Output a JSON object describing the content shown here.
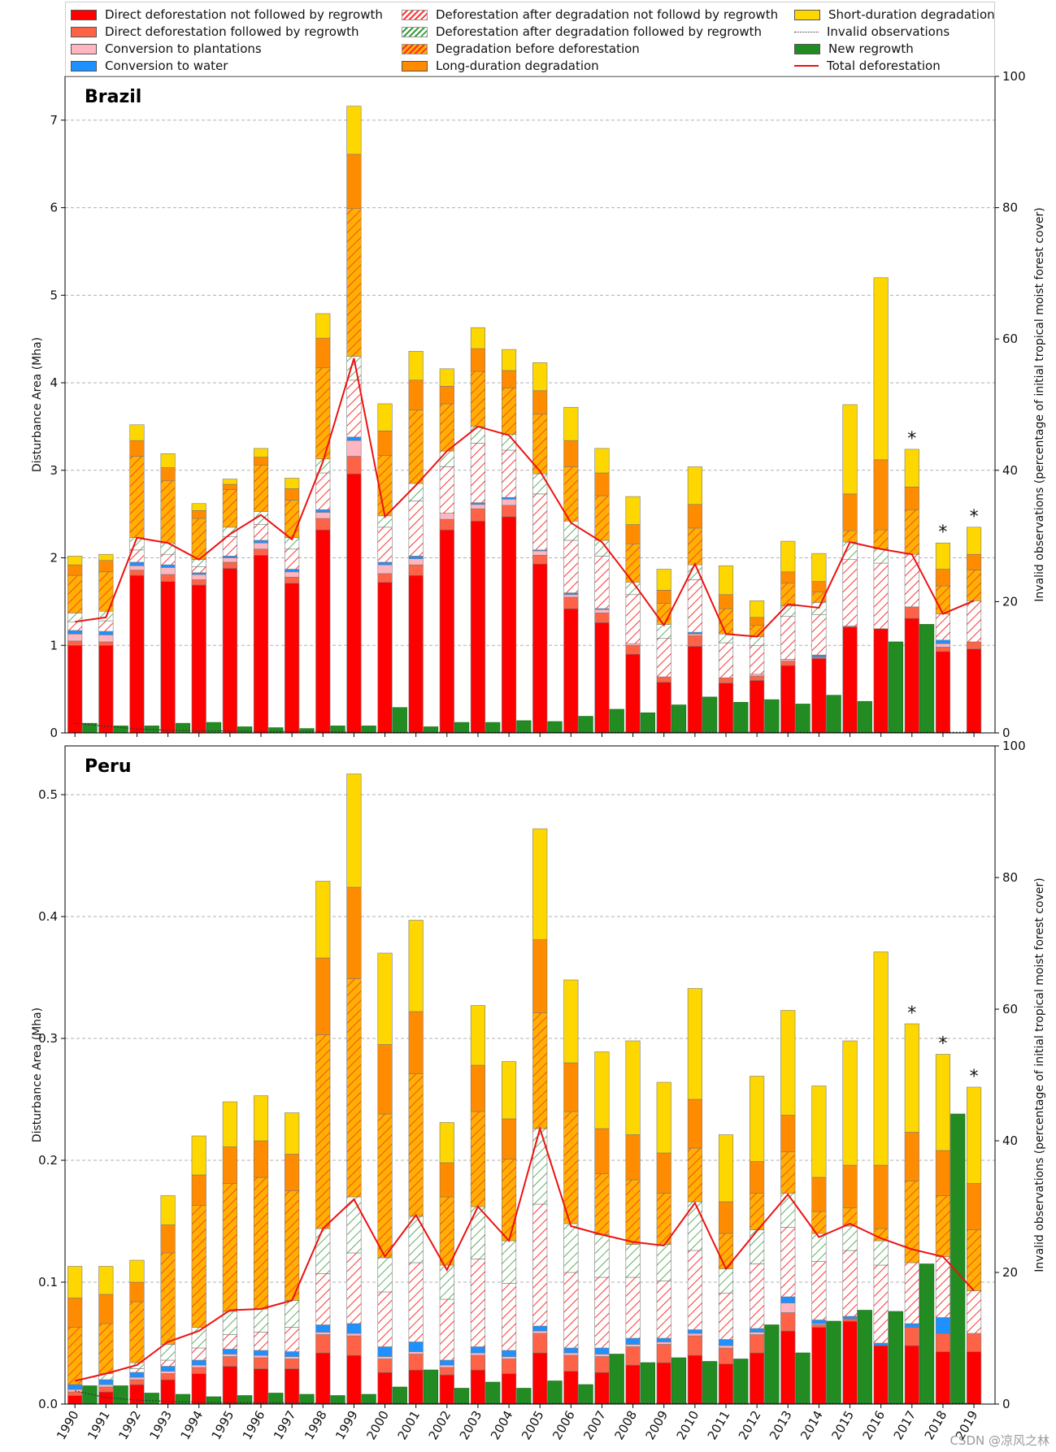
{
  "legend": [
    {
      "key": "direct_nr",
      "label": "Direct deforestation not followed by regrowth",
      "color": "#ff0000",
      "style": "solid"
    },
    {
      "key": "direct_r",
      "label": "Direct deforestation followed by regrowth",
      "color": "#ff6347",
      "style": "solid"
    },
    {
      "key": "plant",
      "label": "Conversion to plantations",
      "color": "#ffb6c1",
      "style": "solid"
    },
    {
      "key": "water",
      "label": "Conversion to water",
      "color": "#1e90ff",
      "style": "solid"
    },
    {
      "key": "dad_nr",
      "label": "Deforestation after degradation not followd by regrowth",
      "color": "#ff3333",
      "style": "hatch-red"
    },
    {
      "key": "dad_r",
      "label": "Deforestation after degradation followed by regrowth",
      "color": "#2e8b57",
      "style": "hatch-green"
    },
    {
      "key": "deg_bef",
      "label": "Degradation before deforestation",
      "color": "#ffa500",
      "style": "hatch-orange"
    },
    {
      "key": "long_deg",
      "label": "Long-duration degradation",
      "color": "#ff8c00",
      "style": "solid"
    },
    {
      "key": "short_deg",
      "label": "Short-duration degradation",
      "color": "#ffd700",
      "style": "solid"
    },
    {
      "key": "invalid",
      "label": "Invalid observations",
      "color": "#333333",
      "style": "dotted"
    },
    {
      "key": "regrowth",
      "label": "New regrowth",
      "color": "#228b22",
      "style": "solid"
    },
    {
      "key": "total",
      "label": "Total deforestation",
      "color": "#ee1111",
      "style": "line"
    }
  ],
  "chart_data": [
    {
      "type": "bar",
      "stacked": true,
      "title": "Brazil",
      "ylabel": "Disturbance Area (Mha)",
      "ylabel_right": "Invalid observations (percentage of initial tropical moist forest cover)",
      "ylim": [
        0,
        7.5
      ],
      "yticks": [
        "0",
        "1",
        "2",
        "3",
        "4",
        "5",
        "6",
        "7"
      ],
      "ylim_right": [
        0,
        100
      ],
      "yticks_right": [
        "0",
        "20",
        "40",
        "60",
        "80",
        "100"
      ],
      "categories": [
        "1990",
        "1991",
        "1992",
        "1993",
        "1994",
        "1995",
        "1996",
        "1997",
        "1998",
        "1999",
        "2000",
        "2001",
        "2002",
        "2003",
        "2004",
        "2005",
        "2006",
        "2007",
        "2008",
        "2009",
        "2010",
        "2011",
        "2012",
        "2013",
        "2014",
        "2015",
        "2016",
        "2017",
        "2018",
        "2019"
      ],
      "stack_order": [
        "direct_nr",
        "direct_r",
        "plant",
        "water",
        "dad_nr",
        "dad_r",
        "deg_bef",
        "long_deg",
        "short_deg"
      ],
      "series": {
        "direct_nr": [
          1.0,
          1.0,
          1.8,
          1.73,
          1.69,
          1.88,
          2.03,
          1.71,
          2.32,
          2.96,
          1.72,
          1.8,
          2.32,
          2.42,
          2.47,
          1.93,
          1.42,
          1.26,
          0.9,
          0.58,
          0.99,
          0.57,
          0.6,
          0.77,
          0.85,
          1.21,
          1.19,
          1.31,
          0.93,
          0.96
        ],
        "direct_r": [
          0.05,
          0.04,
          0.06,
          0.08,
          0.06,
          0.07,
          0.07,
          0.07,
          0.13,
          0.2,
          0.1,
          0.12,
          0.12,
          0.14,
          0.13,
          0.1,
          0.13,
          0.11,
          0.1,
          0.06,
          0.12,
          0.06,
          0.05,
          0.05,
          0.02,
          0.01,
          0.0,
          0.13,
          0.05,
          0.08
        ],
        "plant": [
          0.08,
          0.08,
          0.05,
          0.08,
          0.06,
          0.05,
          0.07,
          0.06,
          0.07,
          0.18,
          0.1,
          0.07,
          0.07,
          0.05,
          0.07,
          0.05,
          0.03,
          0.04,
          0.02,
          0.0,
          0.02,
          0.0,
          0.02,
          0.02,
          0.0,
          0.0,
          0.0,
          0.0,
          0.04,
          0.0
        ],
        "water": [
          0.04,
          0.04,
          0.04,
          0.03,
          0.02,
          0.02,
          0.03,
          0.03,
          0.03,
          0.04,
          0.03,
          0.03,
          0.0,
          0.02,
          0.02,
          0.01,
          0.02,
          0.01,
          0.0,
          0.0,
          0.02,
          0.0,
          0.0,
          0.0,
          0.02,
          0.0,
          0.0,
          0.0,
          0.04,
          0.0
        ],
        "dad_nr": [
          0.1,
          0.12,
          0.14,
          0.12,
          0.07,
          0.22,
          0.18,
          0.23,
          0.42,
          0.65,
          0.4,
          0.63,
          0.53,
          0.68,
          0.54,
          0.64,
          0.6,
          0.6,
          0.56,
          0.44,
          0.6,
          0.4,
          0.33,
          0.49,
          0.46,
          0.76,
          0.75,
          0.6,
          0.3,
          0.47
        ],
        "dad_r": [
          0.1,
          0.11,
          0.14,
          0.13,
          0.08,
          0.11,
          0.15,
          0.13,
          0.16,
          0.27,
          0.13,
          0.2,
          0.18,
          0.19,
          0.18,
          0.23,
          0.22,
          0.18,
          0.14,
          0.16,
          0.17,
          0.1,
          0.1,
          0.12,
          0.14,
          0.2,
          0.16,
          0.0,
          0.0,
          0.0
        ],
        "deg_bef": [
          0.43,
          0.45,
          0.93,
          0.71,
          0.47,
          0.43,
          0.53,
          0.43,
          1.04,
          1.69,
          0.69,
          0.84,
          0.54,
          0.63,
          0.53,
          0.68,
          0.62,
          0.51,
          0.44,
          0.24,
          0.42,
          0.29,
          0.13,
          0.26,
          0.12,
          0.13,
          0.22,
          0.51,
          0.32,
          0.35
        ],
        "long_deg": [
          0.12,
          0.13,
          0.18,
          0.15,
          0.09,
          0.06,
          0.09,
          0.13,
          0.34,
          0.62,
          0.28,
          0.34,
          0.2,
          0.26,
          0.2,
          0.27,
          0.3,
          0.26,
          0.22,
          0.15,
          0.27,
          0.16,
          0.09,
          0.13,
          0.12,
          0.42,
          0.8,
          0.26,
          0.19,
          0.18
        ],
        "short_deg": [
          0.1,
          0.07,
          0.18,
          0.16,
          0.08,
          0.06,
          0.1,
          0.12,
          0.28,
          0.55,
          0.31,
          0.33,
          0.2,
          0.24,
          0.24,
          0.32,
          0.38,
          0.28,
          0.32,
          0.24,
          0.43,
          0.33,
          0.19,
          0.35,
          0.32,
          1.02,
          2.08,
          0.43,
          0.3,
          0.31
        ]
      },
      "new_regrowth": [
        0.11,
        0.08,
        0.08,
        0.11,
        0.12,
        0.07,
        0.06,
        0.05,
        0.08,
        0.08,
        0.29,
        0.07,
        0.12,
        0.12,
        0.14,
        0.13,
        0.19,
        0.27,
        0.23,
        0.32,
        0.41,
        0.35,
        0.38,
        0.33,
        0.43,
        0.36,
        1.04,
        1.24,
        0.0,
        0.0
      ],
      "total_deforestation": [
        1.27,
        1.32,
        2.23,
        2.17,
        1.98,
        2.27,
        2.49,
        2.21,
        3.1,
        4.28,
        2.47,
        2.83,
        3.22,
        3.5,
        3.4,
        2.99,
        2.4,
        2.18,
        1.72,
        1.23,
        1.93,
        1.13,
        1.1,
        1.47,
        1.43,
        2.18,
        2.1,
        2.04,
        1.36,
        1.51
      ],
      "invalid_observations": [
        1.5,
        1.0,
        0.6,
        0.4,
        0.3,
        0.3,
        0.2,
        0.2,
        0.2,
        0.1,
        0.1,
        0.1,
        0.1,
        0.1,
        0.1,
        0.1,
        0.1,
        0.1,
        0.1,
        0.1,
        0.1,
        0.1,
        0.1,
        0.1,
        0.1,
        0.1,
        0.1,
        0.1,
        0.1,
        0.1
      ],
      "annotations": [
        {
          "year": "2017",
          "text": "*"
        },
        {
          "year": "2018",
          "text": "*"
        },
        {
          "year": "2019",
          "text": "*"
        }
      ]
    },
    {
      "type": "bar",
      "stacked": true,
      "title": "Peru",
      "ylabel": "Disturbance Area (Mha)",
      "ylabel_right": "Invalid observations (percentage of initial tropical moist forest cover)",
      "ylim": [
        0,
        0.54
      ],
      "yticks": [
        "0.0",
        "0.1",
        "0.2",
        "0.3",
        "0.4",
        "0.5"
      ],
      "ylim_right": [
        0,
        100
      ],
      "yticks_right": [
        "0",
        "20",
        "40",
        "60",
        "80",
        "100"
      ],
      "categories": [
        "1990",
        "1991",
        "1992",
        "1993",
        "1994",
        "1995",
        "1996",
        "1997",
        "1998",
        "1999",
        "2000",
        "2001",
        "2002",
        "2003",
        "2004",
        "2005",
        "2006",
        "2007",
        "2008",
        "2009",
        "2010",
        "2011",
        "2012",
        "2013",
        "2014",
        "2015",
        "2016",
        "2017",
        "2018",
        "2019"
      ],
      "stack_order": [
        "direct_nr",
        "direct_r",
        "plant",
        "water",
        "dad_nr",
        "dad_r",
        "deg_bef",
        "long_deg",
        "short_deg"
      ],
      "series": {
        "direct_nr": [
          0.007,
          0.01,
          0.016,
          0.02,
          0.025,
          0.031,
          0.029,
          0.029,
          0.042,
          0.04,
          0.026,
          0.028,
          0.024,
          0.028,
          0.025,
          0.042,
          0.027,
          0.026,
          0.032,
          0.034,
          0.04,
          0.033,
          0.042,
          0.06,
          0.063,
          0.068,
          0.048,
          0.048,
          0.043,
          0.043
        ],
        "direct_r": [
          0.003,
          0.004,
          0.004,
          0.005,
          0.005,
          0.008,
          0.009,
          0.008,
          0.015,
          0.016,
          0.011,
          0.013,
          0.006,
          0.012,
          0.012,
          0.016,
          0.013,
          0.013,
          0.015,
          0.015,
          0.016,
          0.013,
          0.015,
          0.015,
          0.002,
          0.002,
          0.0,
          0.015,
          0.015,
          0.015
        ],
        "plant": [
          0.002,
          0.002,
          0.002,
          0.002,
          0.002,
          0.002,
          0.002,
          0.002,
          0.002,
          0.002,
          0.002,
          0.002,
          0.002,
          0.002,
          0.002,
          0.002,
          0.002,
          0.002,
          0.002,
          0.002,
          0.002,
          0.002,
          0.002,
          0.008,
          0.001,
          0.0,
          0.0,
          0.0,
          0.0,
          0.0
        ],
        "water": [
          0.004,
          0.004,
          0.004,
          0.004,
          0.004,
          0.004,
          0.004,
          0.004,
          0.006,
          0.008,
          0.008,
          0.008,
          0.004,
          0.005,
          0.005,
          0.004,
          0.004,
          0.005,
          0.005,
          0.003,
          0.003,
          0.005,
          0.003,
          0.005,
          0.003,
          0.002,
          0.002,
          0.003,
          0.013,
          0.0
        ],
        "dad_nr": [
          0.0,
          0.0,
          0.003,
          0.005,
          0.01,
          0.012,
          0.015,
          0.02,
          0.042,
          0.058,
          0.045,
          0.065,
          0.05,
          0.072,
          0.055,
          0.1,
          0.062,
          0.058,
          0.05,
          0.047,
          0.065,
          0.038,
          0.053,
          0.057,
          0.048,
          0.054,
          0.064,
          0.05,
          0.05,
          0.035
        ],
        "dad_r": [
          0.0,
          0.005,
          0.005,
          0.013,
          0.017,
          0.019,
          0.019,
          0.022,
          0.037,
          0.046,
          0.028,
          0.038,
          0.028,
          0.043,
          0.035,
          0.062,
          0.04,
          0.035,
          0.027,
          0.03,
          0.04,
          0.02,
          0.028,
          0.028,
          0.023,
          0.02,
          0.02,
          0.0,
          0.0,
          0.0
        ],
        "deg_bef": [
          0.047,
          0.041,
          0.05,
          0.075,
          0.1,
          0.105,
          0.108,
          0.09,
          0.159,
          0.179,
          0.118,
          0.117,
          0.056,
          0.078,
          0.067,
          0.095,
          0.092,
          0.05,
          0.053,
          0.042,
          0.044,
          0.029,
          0.03,
          0.034,
          0.018,
          0.015,
          0.01,
          0.067,
          0.05,
          0.05
        ],
        "long_deg": [
          0.024,
          0.024,
          0.016,
          0.023,
          0.025,
          0.03,
          0.03,
          0.03,
          0.063,
          0.075,
          0.057,
          0.051,
          0.028,
          0.038,
          0.033,
          0.06,
          0.04,
          0.037,
          0.037,
          0.033,
          0.04,
          0.026,
          0.026,
          0.03,
          0.028,
          0.035,
          0.052,
          0.04,
          0.037,
          0.038
        ],
        "short_deg": [
          0.026,
          0.023,
          0.018,
          0.024,
          0.032,
          0.037,
          0.037,
          0.034,
          0.063,
          0.093,
          0.075,
          0.075,
          0.033,
          0.049,
          0.047,
          0.091,
          0.068,
          0.063,
          0.077,
          0.058,
          0.091,
          0.055,
          0.07,
          0.086,
          0.075,
          0.102,
          0.175,
          0.089,
          0.079,
          0.079
        ]
      },
      "new_regrowth": [
        0.015,
        0.015,
        0.009,
        0.008,
        0.006,
        0.007,
        0.009,
        0.008,
        0.007,
        0.008,
        0.014,
        0.028,
        0.013,
        0.018,
        0.013,
        0.019,
        0.016,
        0.041,
        0.034,
        0.038,
        0.035,
        0.037,
        0.065,
        0.042,
        0.068,
        0.077,
        0.076,
        0.115,
        0.238,
        0.0
      ],
      "total_deforestation": [
        0.019,
        0.025,
        0.032,
        0.051,
        0.06,
        0.077,
        0.078,
        0.085,
        0.144,
        0.168,
        0.121,
        0.155,
        0.11,
        0.162,
        0.134,
        0.226,
        0.146,
        0.139,
        0.133,
        0.13,
        0.165,
        0.111,
        0.142,
        0.172,
        0.137,
        0.148,
        0.136,
        0.127,
        0.121,
        0.093
      ],
      "invalid_observations": [
        2.0,
        1.0,
        0.6,
        0.4,
        0.3,
        0.2,
        0.2,
        0.2,
        0.1,
        0.1,
        0.1,
        0.1,
        0.1,
        0.1,
        0.1,
        0.1,
        0.1,
        0.1,
        0.1,
        0.1,
        0.1,
        0.1,
        0.1,
        0.1,
        0.1,
        0.1,
        0.1,
        0.1,
        0.1,
        0.1
      ],
      "annotations": [
        {
          "year": "2017",
          "text": "*"
        },
        {
          "year": "2018",
          "text": "*"
        },
        {
          "year": "2019",
          "text": "*"
        }
      ]
    }
  ],
  "watermark": "CSDN @凉风之林"
}
